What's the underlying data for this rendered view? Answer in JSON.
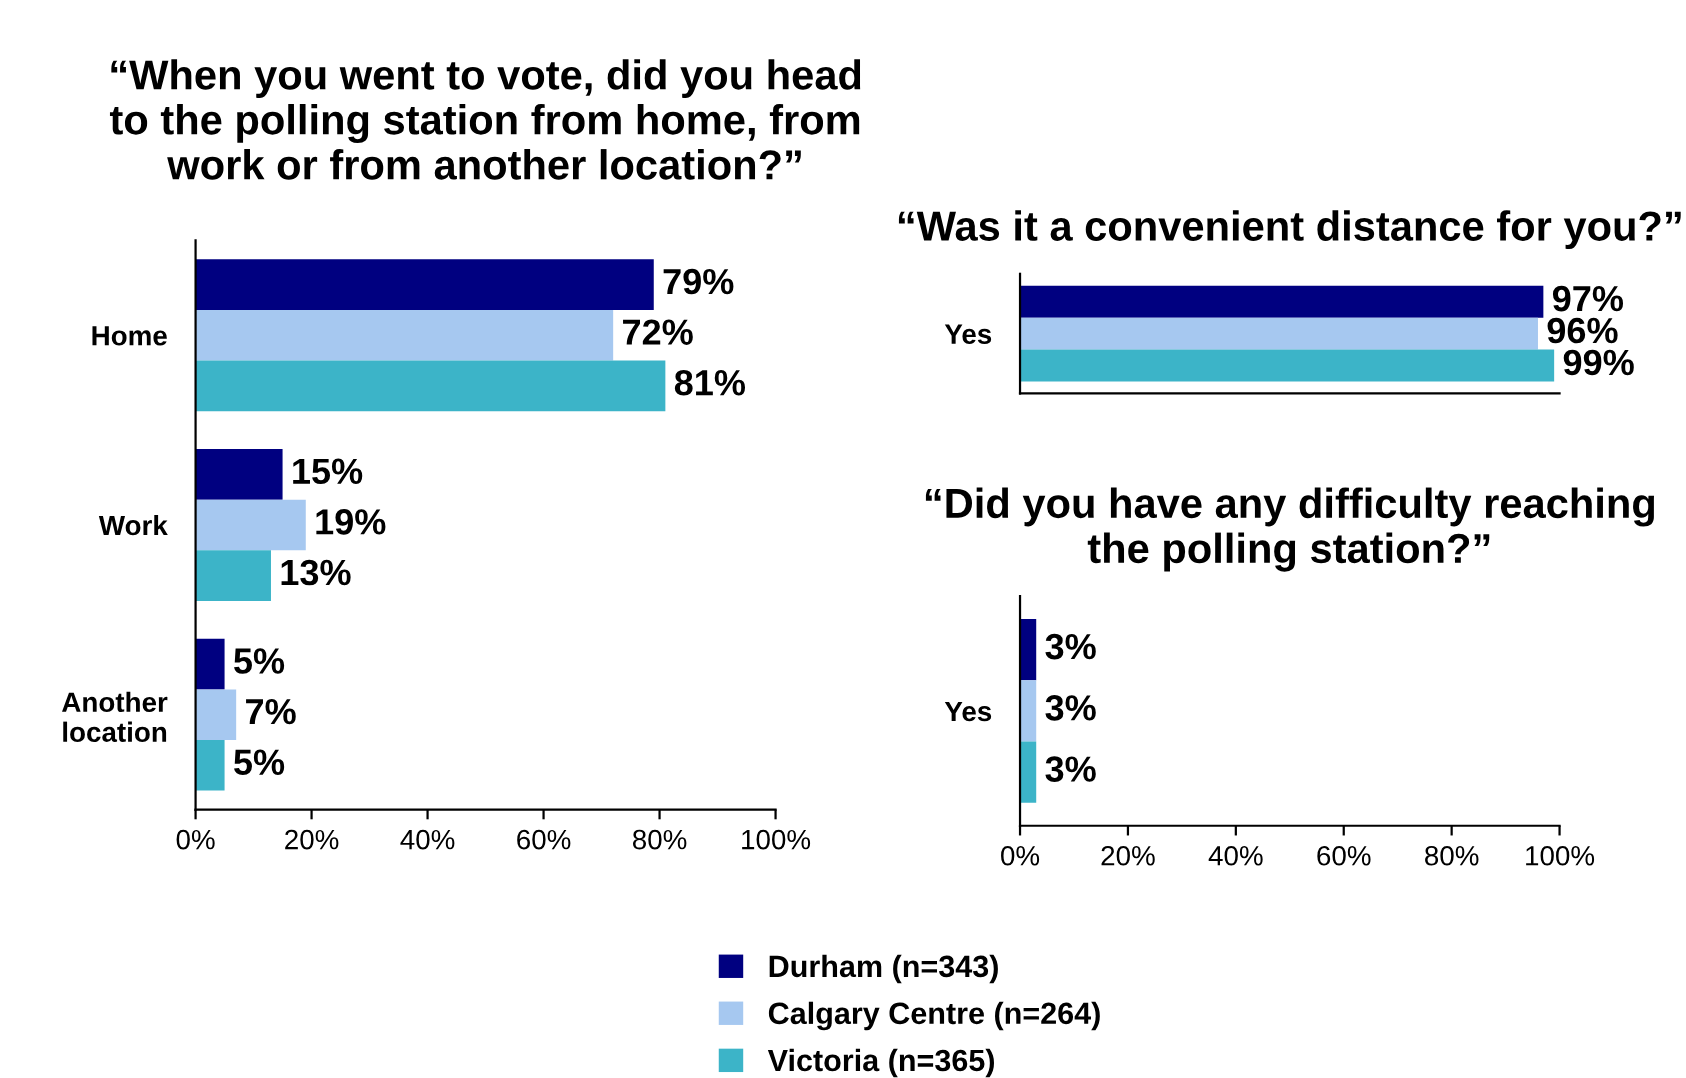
{
  "chart_data": [
    {
      "type": "bar",
      "orientation": "horizontal",
      "title": "“When you went to vote, did you head\nto the polling station from home, from\nwork or from another location?”",
      "categories": [
        "Home",
        "Work",
        "Another\nlocation"
      ],
      "series": [
        {
          "name": "Durham (n=343)",
          "color": "#000080",
          "values": [
            79,
            15,
            5
          ]
        },
        {
          "name": "Calgary Centre (n=264)",
          "color": "#a6c8f0",
          "values": [
            72,
            19,
            7
          ]
        },
        {
          "name": "Victoria (n=365)",
          "color": "#3cb4c8",
          "values": [
            81,
            13,
            5
          ]
        }
      ],
      "xlim": [
        0,
        100
      ],
      "xticks": [
        {
          "value": 0,
          "label": "0%"
        },
        {
          "value": 20,
          "label": "20%"
        },
        {
          "value": 40,
          "label": "40%"
        },
        {
          "value": 60,
          "label": "60%"
        },
        {
          "value": 80,
          "label": "80%"
        },
        {
          "value": 100,
          "label": "100%"
        }
      ],
      "value_labels": [
        "79%",
        "15%",
        "5%",
        "72%",
        "19%",
        "7%",
        "81%",
        "13%",
        "5%"
      ],
      "legend": "bottom"
    },
    {
      "type": "bar",
      "orientation": "horizontal",
      "title": "“Was it a convenient distance for you?”",
      "categories": [
        "Yes"
      ],
      "series": [
        {
          "color": "#000080",
          "values": [
            97
          ]
        },
        {
          "color": "#a6c8f0",
          "values": [
            96
          ]
        },
        {
          "color": "#3cb4c8",
          "values": [
            99
          ]
        }
      ],
      "xlim": [
        0,
        100
      ],
      "tick_labels": "y",
      "value_labels": [
        "97%",
        "96%",
        "99%"
      ]
    },
    {
      "type": "bar",
      "orientation": "horizontal",
      "title": "“Did you have any difficulty reaching\nthe polling station?”",
      "categories": [
        "Yes"
      ],
      "series": [
        {
          "color": "#000080",
          "values": [
            3
          ]
        },
        {
          "color": "#a6c8f0",
          "values": [
            3
          ]
        },
        {
          "color": "#3cb4c8",
          "values": [
            3
          ]
        }
      ],
      "xlim": [
        0,
        100
      ],
      "xticks": [
        {
          "value": 0,
          "label": "0%"
        },
        {
          "value": 20,
          "label": "20%"
        },
        {
          "value": 40,
          "label": "40%"
        },
        {
          "value": 60,
          "label": "60%"
        },
        {
          "value": 80,
          "label": "80%"
        },
        {
          "value": 100,
          "label": "100%"
        }
      ],
      "value_labels": [
        "3%",
        "3%",
        "3%"
      ]
    }
  ]
}
